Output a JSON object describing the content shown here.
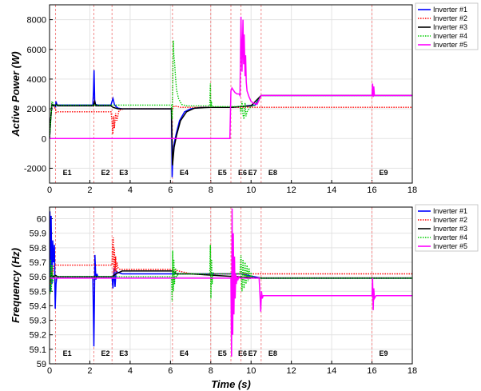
{
  "chart_data": [
    {
      "type": "line",
      "ylabel": "Active Power (W)",
      "xlabel": "",
      "xlim": [
        0,
        18
      ],
      "ylim": [
        -3000,
        9000
      ],
      "xticks": [
        "0",
        "2",
        "4",
        "6",
        "8",
        "10",
        "12",
        "14",
        "16",
        "18"
      ],
      "yticks": [
        "-2000",
        "0",
        "2000",
        "4000",
        "6000",
        "8000"
      ],
      "grid": true,
      "legend_position": "top-right",
      "events": [
        {
          "label": "E1",
          "x": 0.3
        },
        {
          "label": "E2",
          "x": 2.2
        },
        {
          "label": "E3",
          "x": 3.1
        },
        {
          "label": "E4",
          "x": 6.1
        },
        {
          "label": "E5",
          "x": 8.0
        },
        {
          "label": "E6",
          "x": 9.0
        },
        {
          "label": "E7",
          "x": 9.5
        },
        {
          "label": "E8",
          "x": 10.5
        },
        {
          "label": "E9",
          "x": 16.0
        }
      ],
      "series": [
        {
          "name": "Inverter #1",
          "color": "#0000ff",
          "style": "solid",
          "x": [
            0,
            0.05,
            0.12,
            0.2,
            0.3,
            0.32,
            0.36,
            0.42,
            0.6,
            2.15,
            2.18,
            2.21,
            2.24,
            2.28,
            2.4,
            3.05,
            3.1,
            3.15,
            3.22,
            3.3,
            3.4,
            3.6,
            4.0,
            6.05,
            6.08,
            6.12,
            6.16,
            6.2,
            6.3,
            6.45,
            6.7,
            7.0,
            7.5,
            8.0,
            9.0,
            9.5,
            9.8,
            10.2,
            10.5,
            18
          ],
          "y": [
            0,
            1200,
            2300,
            2250,
            2150,
            2500,
            2300,
            2250,
            2250,
            2250,
            3200,
            4600,
            2600,
            2300,
            2250,
            2250,
            2500,
            2700,
            2300,
            2150,
            2050,
            2000,
            2000,
            2000,
            -2600,
            -1200,
            -500,
            -200,
            400,
            1200,
            1800,
            2000,
            2100,
            2100,
            2100,
            2150,
            2200,
            2250,
            2900,
            2900
          ]
        },
        {
          "name": "Inverter #2",
          "color": "#ff0000",
          "style": "dotted",
          "x": [
            0,
            0.05,
            0.12,
            0.2,
            0.3,
            0.32,
            0.38,
            0.5,
            1.0,
            3.05,
            3.1,
            3.14,
            3.18,
            3.22,
            3.28,
            3.34,
            3.45,
            3.7,
            4.0,
            6.05,
            6.1,
            6.2,
            6.35,
            6.5,
            7.0,
            10.5,
            18
          ],
          "y": [
            0,
            1200,
            2300,
            2200,
            2000,
            1750,
            1800,
            1800,
            1800,
            1800,
            1200,
            300,
            1500,
            700,
            1700,
            1200,
            1900,
            2000,
            2000,
            2000,
            2000,
            2200,
            2150,
            2100,
            2100,
            2100,
            2100
          ]
        },
        {
          "name": "Inverter #3",
          "color": "#000000",
          "style": "solid",
          "x": [
            0,
            0.05,
            0.12,
            0.2,
            0.3,
            0.34,
            0.4,
            0.5,
            2.18,
            2.24,
            2.3,
            3.05,
            3.15,
            3.4,
            4.0,
            6.05,
            6.1,
            6.18,
            6.3,
            6.5,
            6.8,
            7.2,
            8.0,
            9.0,
            9.5,
            10.0,
            10.5,
            18
          ],
          "y": [
            0,
            1200,
            2300,
            2200,
            2200,
            2300,
            2200,
            2200,
            2200,
            2500,
            2200,
            2200,
            2100,
            2000,
            2000,
            2000,
            -1800,
            -600,
            200,
            1200,
            1800,
            2050,
            2100,
            2100,
            2150,
            2200,
            2900,
            2900
          ]
        },
        {
          "name": "Inverter #4",
          "color": "#00cc00",
          "style": "dotted",
          "x": [
            0,
            0.05,
            0.12,
            0.2,
            0.3,
            0.5,
            2.2,
            2.3,
            3.1,
            3.3,
            6.05,
            6.08,
            6.11,
            6.14,
            6.17,
            6.2,
            6.25,
            6.3,
            6.4,
            6.55,
            6.8,
            7.2,
            7.95,
            7.98,
            8.0,
            8.03,
            8.06,
            8.1,
            8.2,
            9.0,
            9.45,
            9.5,
            9.55,
            9.6,
            9.65,
            9.7,
            9.75,
            9.8,
            9.9,
            10.0,
            10.2,
            10.5,
            18
          ],
          "y": [
            0,
            1000,
            2500,
            2300,
            2250,
            2250,
            2250,
            2250,
            2250,
            2250,
            2250,
            1300,
            3500,
            6600,
            5600,
            5200,
            4200,
            3300,
            2700,
            2300,
            2200,
            2200,
            2200,
            3700,
            2100,
            2500,
            2150,
            2150,
            2150,
            2150,
            2150,
            1700,
            2500,
            1600,
            1300,
            2400,
            1500,
            1800,
            2000,
            2150,
            2250,
            2900,
            2900
          ]
        },
        {
          "name": "Inverter #5",
          "color": "#ff00ff",
          "style": "solid",
          "x": [
            0,
            0.3,
            8.95,
            9.0,
            9.05,
            9.1,
            9.2,
            9.3,
            9.4,
            9.45,
            9.5,
            9.55,
            9.6,
            9.63,
            9.66,
            9.7,
            9.73,
            9.76,
            9.8,
            9.9,
            10.0,
            10.1,
            10.2,
            10.3,
            10.5,
            10.55,
            16.0,
            16.03,
            16.06,
            16.09,
            16.12,
            16.2,
            18
          ],
          "y": [
            0,
            0,
            0,
            3200,
            3400,
            3300,
            3100,
            3000,
            3000,
            2900,
            8200,
            4500,
            8000,
            5000,
            7000,
            4200,
            5600,
            3800,
            3200,
            2800,
            2500,
            2400,
            2350,
            2300,
            2900,
            2900,
            2900,
            3700,
            2800,
            3500,
            2900,
            2900,
            2900
          ]
        }
      ]
    },
    {
      "type": "line",
      "ylabel": "Frequency (Hz)",
      "xlabel": "Time (s)",
      "xlim": [
        0,
        18
      ],
      "ylim": [
        59,
        60.08
      ],
      "xticks": [
        "0",
        "2",
        "4",
        "6",
        "8",
        "10",
        "12",
        "14",
        "16",
        "18"
      ],
      "yticks": [
        "59",
        "59.1",
        "59.2",
        "59.3",
        "59.4",
        "59.5",
        "59.6",
        "59.7",
        "59.8",
        "59.9",
        "60"
      ],
      "grid": true,
      "legend_position": "top-right",
      "events": [
        {
          "label": "E1",
          "x": 0.3
        },
        {
          "label": "E2",
          "x": 2.2
        },
        {
          "label": "E3",
          "x": 3.1
        },
        {
          "label": "E4",
          "x": 6.1
        },
        {
          "label": "E5",
          "x": 8.0
        },
        {
          "label": "E6",
          "x": 9.0
        },
        {
          "label": "E7",
          "x": 9.5
        },
        {
          "label": "E8",
          "x": 10.5
        },
        {
          "label": "E9",
          "x": 16.0
        }
      ],
      "series": [
        {
          "name": "Inverter #1",
          "color": "#0000ff",
          "style": "solid",
          "x": [
            0,
            0.02,
            0.05,
            0.08,
            0.12,
            0.16,
            0.2,
            0.24,
            0.28,
            0.32,
            0.36,
            0.4,
            0.5,
            2.15,
            2.2,
            2.25,
            2.3,
            2.35,
            2.4,
            2.5,
            3.1,
            3.15,
            3.2,
            3.25,
            3.3,
            3.4,
            3.6,
            6.1,
            6.2,
            7.0,
            9.5,
            10.5,
            18
          ],
          "y": [
            59.6,
            60.05,
            59.5,
            60.02,
            59.55,
            59.85,
            59.7,
            59.82,
            59.38,
            59.55,
            59.6,
            59.6,
            59.6,
            59.6,
            59.12,
            59.75,
            59.58,
            59.62,
            59.6,
            59.6,
            59.6,
            59.52,
            59.66,
            59.53,
            59.64,
            59.63,
            59.62,
            59.62,
            59.62,
            59.62,
            59.62,
            59.59,
            59.59
          ]
        },
        {
          "name": "Inverter #2",
          "color": "#ff0000",
          "style": "dotted",
          "x": [
            0,
            0.05,
            0.1,
            0.15,
            0.2,
            0.3,
            0.4,
            3.1,
            3.13,
            3.16,
            3.19,
            3.22,
            3.25,
            3.28,
            3.31,
            3.34,
            3.4,
            3.5,
            3.8,
            6.1,
            7.0,
            18
          ],
          "y": [
            59.6,
            59.55,
            59.65,
            59.62,
            59.67,
            59.68,
            59.68,
            59.68,
            59.82,
            59.87,
            59.62,
            59.8,
            59.64,
            59.74,
            59.63,
            59.7,
            59.66,
            59.65,
            59.65,
            59.65,
            59.62,
            59.62
          ]
        },
        {
          "name": "Inverter #3",
          "color": "#000000",
          "style": "solid",
          "x": [
            0,
            0.05,
            0.1,
            0.2,
            0.3,
            0.4,
            0.5,
            3.1,
            3.3,
            3.6,
            6.1,
            6.3,
            7.0,
            10.5,
            18
          ],
          "y": [
            59.6,
            59.58,
            59.62,
            59.6,
            59.61,
            59.6,
            59.6,
            59.6,
            59.62,
            59.64,
            59.64,
            59.62,
            59.62,
            59.59,
            59.59
          ]
        },
        {
          "name": "Inverter #4",
          "color": "#00cc00",
          "style": "dotted",
          "x": [
            0,
            0.03,
            0.06,
            0.09,
            0.12,
            0.16,
            0.2,
            0.3,
            0.5,
            2.2,
            2.3,
            6.05,
            6.08,
            6.11,
            6.14,
            6.17,
            6.2,
            6.25,
            6.3,
            6.4,
            6.6,
            7.95,
            7.98,
            8.01,
            8.04,
            8.07,
            8.1,
            8.2,
            9.45,
            9.5,
            9.55,
            9.6,
            9.65,
            9.7,
            9.75,
            9.8,
            9.85,
            9.9,
            9.95,
            10.0,
            10.05,
            10.1,
            10.2,
            10.5,
            18
          ],
          "y": [
            59.6,
            59.48,
            59.72,
            59.5,
            59.68,
            59.56,
            59.6,
            59.6,
            59.6,
            59.6,
            59.6,
            59.6,
            59.43,
            59.78,
            59.5,
            59.72,
            59.55,
            59.66,
            59.6,
            59.62,
            59.62,
            59.62,
            59.82,
            59.45,
            59.72,
            59.55,
            59.63,
            59.62,
            59.62,
            59.75,
            59.5,
            59.72,
            59.52,
            59.7,
            59.55,
            59.68,
            59.57,
            59.66,
            59.58,
            59.63,
            59.6,
            59.6,
            59.59,
            59.59,
            59.59
          ]
        },
        {
          "name": "Inverter #5",
          "color": "#ff00ff",
          "style": "solid",
          "x": [
            0,
            9.0,
            9.03,
            9.06,
            9.09,
            9.12,
            9.15,
            9.18,
            9.21,
            9.24,
            9.27,
            9.3,
            9.35,
            9.4,
            9.45,
            9.5,
            9.6,
            9.8,
            10.0,
            10.2,
            10.4,
            10.45,
            10.48,
            10.52,
            10.56,
            10.6,
            10.7,
            16.0,
            16.03,
            16.06,
            16.09,
            16.12,
            16.2,
            18
          ],
          "y": [
            59.59,
            59.59,
            59.05,
            60.07,
            59.2,
            59.9,
            59.34,
            59.74,
            59.45,
            59.62,
            59.55,
            59.6,
            59.58,
            59.6,
            59.59,
            59.59,
            59.59,
            59.59,
            59.59,
            59.59,
            59.59,
            59.45,
            59.36,
            59.5,
            59.45,
            59.47,
            59.47,
            59.47,
            59.59,
            59.37,
            59.52,
            59.45,
            59.47,
            59.47
          ]
        }
      ]
    }
  ]
}
